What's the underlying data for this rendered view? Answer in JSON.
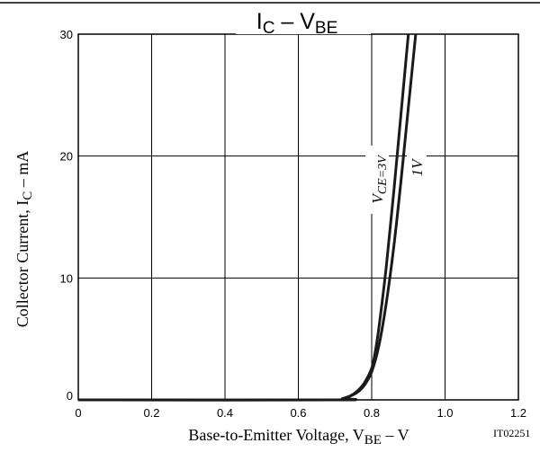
{
  "chart_data": {
    "type": "line",
    "title": {
      "main": "I",
      "sub1": "C",
      "mid": " – V",
      "sub2": "BE"
    },
    "xlabel": {
      "main": "Base-to-Emitter Voltage, V",
      "sub": "BE",
      "tail": " – V"
    },
    "ylabel": {
      "main": "Collector Current, I",
      "sub": "C",
      "tail": " – mA"
    },
    "code": "IT02251",
    "xlim": [
      0,
      1.2
    ],
    "ylim": [
      0,
      30
    ],
    "x_ticks": [
      "0",
      "0.2",
      "0.4",
      "0.6",
      "0.8",
      "1.0",
      "1.2"
    ],
    "y_ticks": [
      "0",
      "10",
      "20",
      "30"
    ],
    "grid": true,
    "series": [
      {
        "name": "VCE=3V",
        "label": {
          "main": "V",
          "sub": "CE=3V"
        },
        "x": [
          0,
          0.7,
          0.72,
          0.74,
          0.76,
          0.78,
          0.8,
          0.81,
          0.82,
          0.84,
          0.86,
          0.88,
          0.9
        ],
        "y": [
          0,
          0,
          0.1,
          0.3,
          0.7,
          1.4,
          2.6,
          4.0,
          6.0,
          11.0,
          17.0,
          23.5,
          30
        ]
      },
      {
        "name": "1V",
        "label": {
          "main": "1V",
          "sub": ""
        },
        "x": [
          0,
          0.7,
          0.72,
          0.74,
          0.76,
          0.78,
          0.8,
          0.82,
          0.84,
          0.86,
          0.88,
          0.9,
          0.92
        ],
        "y": [
          0,
          0,
          0.1,
          0.3,
          0.6,
          1.2,
          2.3,
          4.5,
          8.0,
          12.5,
          18.0,
          24.0,
          30
        ]
      }
    ]
  }
}
